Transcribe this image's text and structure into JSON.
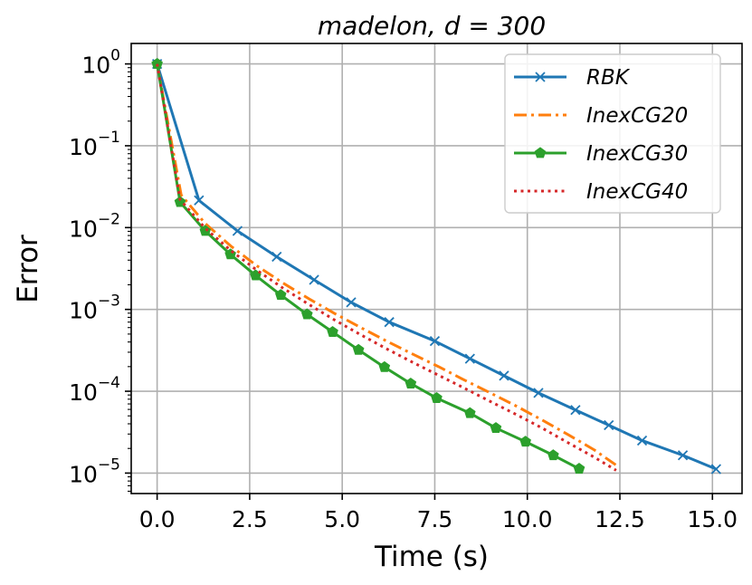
{
  "chart_data": {
    "type": "line",
    "title": "madelon, d = 300",
    "xlabel": "Time (s)",
    "ylabel": "Error",
    "yscale": "log",
    "xlim": [
      -0.7,
      15.8
    ],
    "ylim_log10": [
      -5.25,
      0.25
    ],
    "xticks": [
      0,
      2.5,
      5,
      7.5,
      10,
      12.5,
      15
    ],
    "xtick_labels": [
      "0.0",
      "2.5",
      "5.0",
      "7.5",
      "10.0",
      "12.5",
      "15.0"
    ],
    "ytick_exponents": [
      0,
      -1,
      -2,
      -3,
      -4,
      -5
    ],
    "ytick_labels": [
      {
        "base": "10",
        "exp": "0"
      },
      {
        "base": "10",
        "exp": "−1"
      },
      {
        "base": "10",
        "exp": "−2"
      },
      {
        "base": "10",
        "exp": "−3"
      },
      {
        "base": "10",
        "exp": "−4"
      },
      {
        "base": "10",
        "exp": "−5"
      }
    ],
    "grid": true,
    "legend_position": "top-right",
    "series": [
      {
        "name": "RBK",
        "color": "#1f77b4",
        "linestyle": "solid",
        "marker": "x",
        "x": [
          0.0,
          1.13,
          2.17,
          3.23,
          4.24,
          5.24,
          6.27,
          7.5,
          8.45,
          9.37,
          10.3,
          11.3,
          12.2,
          13.1,
          14.2,
          15.1
        ],
        "y": [
          1.0,
          0.0215,
          0.0091,
          0.0044,
          0.0023,
          0.00122,
          0.0007,
          0.00041,
          0.00025,
          0.000155,
          9.55e-05,
          5.9e-05,
          3.85e-05,
          2.5e-05,
          1.65e-05,
          1.12e-05
        ]
      },
      {
        "name": "InexCG20",
        "color": "#ff7f0e",
        "linestyle": "dashdot",
        "marker": "none",
        "x": [
          0.0,
          0.65,
          1.3,
          2.0,
          2.7,
          3.4,
          4.1,
          4.8,
          5.5,
          6.2,
          6.9,
          7.6,
          8.3,
          9.0,
          9.7,
          10.4,
          11.1,
          11.8,
          12.4
        ],
        "y": [
          1.0,
          0.025,
          0.0112,
          0.0059,
          0.0034,
          0.0021,
          0.00135,
          0.00089,
          0.0006,
          0.00041,
          0.000285,
          0.0002,
          0.000137,
          9.55e-05,
          6.6e-05,
          4.45e-05,
          2.95e-05,
          1.93e-05,
          1.25e-05
        ]
      },
      {
        "name": "InexCG30",
        "color": "#2ca02c",
        "linestyle": "solid",
        "marker": "pentagon",
        "x": [
          0.0,
          0.62,
          1.3,
          1.98,
          2.66,
          3.34,
          4.05,
          4.74,
          5.44,
          6.14,
          6.85,
          7.55,
          8.45,
          9.15,
          9.95,
          10.7,
          11.4
        ],
        "y": [
          1.0,
          0.0205,
          0.0091,
          0.0047,
          0.0026,
          0.0015,
          0.00087,
          0.00053,
          0.00032,
          0.000197,
          0.000124,
          8.25e-05,
          5.4e-05,
          3.55e-05,
          2.42e-05,
          1.65e-05,
          1.13e-05
        ]
      },
      {
        "name": "InexCG40",
        "color": "#d62728",
        "linestyle": "dotted",
        "marker": "none",
        "x": [
          0.0,
          0.62,
          1.3,
          2.0,
          2.7,
          3.4,
          4.1,
          4.8,
          5.5,
          6.2,
          6.9,
          7.6,
          8.3,
          9.0,
          9.7,
          10.4,
          11.1,
          11.8,
          12.4
        ],
        "y": [
          1.0,
          0.022,
          0.0098,
          0.0052,
          0.003,
          0.00182,
          0.00115,
          0.00074,
          0.00049,
          0.00033,
          0.000226,
          0.000157,
          0.000109,
          7.5e-05,
          5.2e-05,
          3.55e-05,
          2.35e-05,
          1.57e-05,
          1.08e-05
        ]
      }
    ]
  }
}
